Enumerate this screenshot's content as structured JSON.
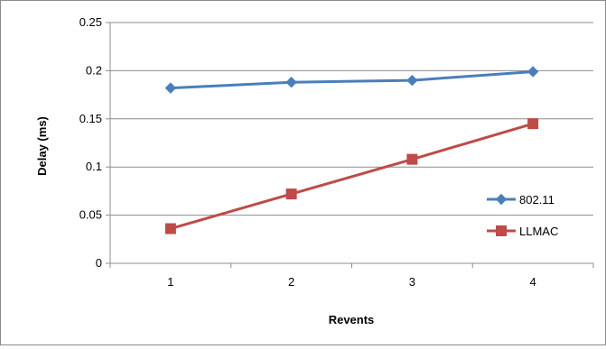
{
  "chart_data": {
    "type": "line",
    "title": "",
    "xlabel": "Revents",
    "ylabel": "Delay (ms)",
    "categories": [
      "1",
      "2",
      "3",
      "4"
    ],
    "ylim": [
      0,
      0.25
    ],
    "yticks": [
      0,
      0.05,
      0.1,
      0.15,
      0.2,
      0.25
    ],
    "ytick_labels": [
      "0",
      "0.05",
      "0.1",
      "0.15",
      "0.2",
      "0.25"
    ],
    "grid": "horizontal",
    "legend_position": "right",
    "series": [
      {
        "name": "802.11",
        "values": [
          0.182,
          0.188,
          0.19,
          0.199
        ],
        "color": "#4a7ebb",
        "marker": "diamond"
      },
      {
        "name": "LLMAC",
        "values": [
          0.036,
          0.072,
          0.108,
          0.145
        ],
        "color": "#be4b48",
        "marker": "square"
      }
    ]
  }
}
